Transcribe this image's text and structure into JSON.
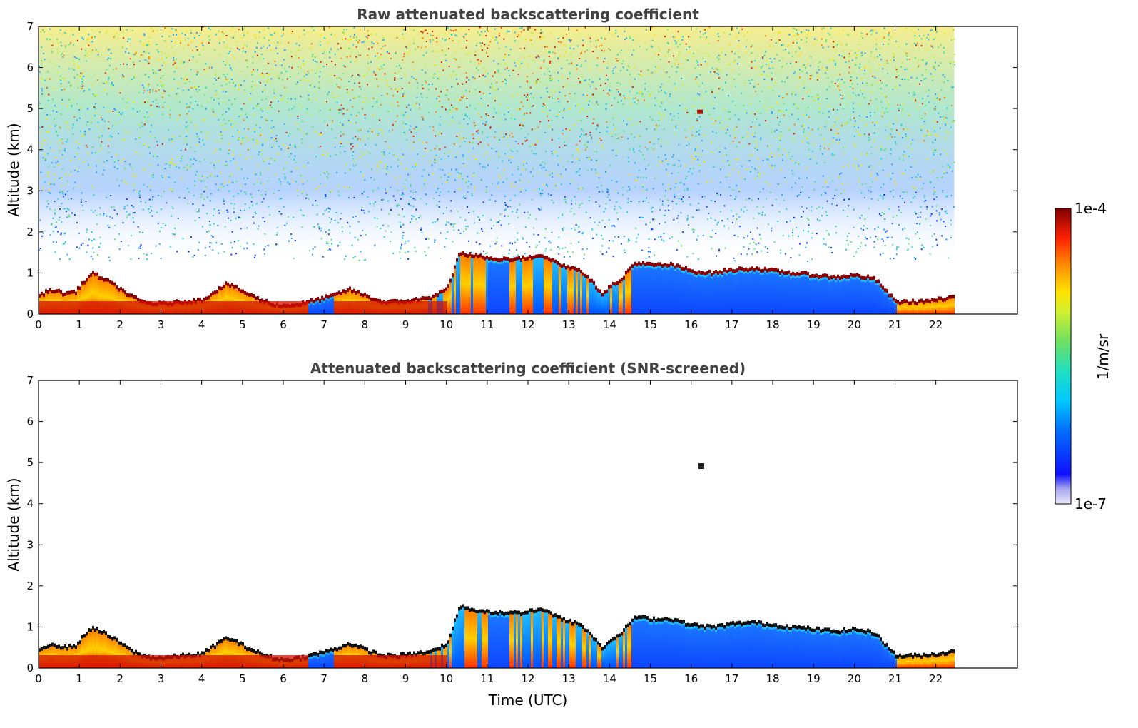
{
  "chart_data": [
    {
      "type": "heatmap",
      "title": "Raw attenuated backscattering coefficient",
      "xlabel": "",
      "ylabel": "Altitude (km)",
      "xlim": [
        0,
        24
      ],
      "ylim": [
        0,
        7
      ],
      "x_ticks": [
        "0",
        "1",
        "2",
        "3",
        "4",
        "5",
        "6",
        "7",
        "8",
        "9",
        "10",
        "11",
        "12",
        "13",
        "14",
        "15",
        "16",
        "17",
        "18",
        "19",
        "20",
        "21",
        "22"
      ],
      "y_ticks": [
        "0",
        "1",
        "2",
        "3",
        "4",
        "5",
        "6",
        "7"
      ],
      "data_end_hour": 22.45,
      "colorscale": "jet (log)",
      "grid": false
    },
    {
      "type": "heatmap",
      "title": "Attenuated backscattering coefficient (SNR-screened)",
      "xlabel": "Time (UTC)",
      "ylabel": "Altitude (km)",
      "xlim": [
        0,
        24
      ],
      "ylim": [
        0,
        7
      ],
      "x_ticks": [
        "0",
        "1",
        "2",
        "3",
        "4",
        "5",
        "6",
        "7",
        "8",
        "9",
        "10",
        "11",
        "12",
        "13",
        "14",
        "15",
        "16",
        "17",
        "18",
        "19",
        "20",
        "21",
        "22"
      ],
      "y_ticks": [
        "0",
        "1",
        "2",
        "3",
        "4",
        "5",
        "6",
        "7"
      ],
      "data_end_hour": 22.45,
      "colorscale": "jet (log)",
      "grid": false
    }
  ],
  "colorbar": {
    "max_label": "1e-4",
    "min_label": "1e-7",
    "unit_label": "1/m/sr",
    "scale": "log"
  },
  "boundary_layer_top_km": [
    [
      0,
      0.45
    ],
    [
      0.3,
      0.6
    ],
    [
      0.6,
      0.5
    ],
    [
      0.9,
      0.55
    ],
    [
      1.1,
      0.8
    ],
    [
      1.3,
      1.0
    ],
    [
      1.6,
      0.85
    ],
    [
      2.0,
      0.6
    ],
    [
      2.3,
      0.4
    ],
    [
      2.6,
      0.28
    ],
    [
      3.0,
      0.25
    ],
    [
      3.5,
      0.3
    ],
    [
      4.0,
      0.35
    ],
    [
      4.3,
      0.55
    ],
    [
      4.6,
      0.75
    ],
    [
      5.0,
      0.55
    ],
    [
      5.3,
      0.4
    ],
    [
      5.7,
      0.25
    ],
    [
      6.0,
      0.2
    ],
    [
      6.4,
      0.25
    ],
    [
      6.8,
      0.35
    ],
    [
      7.2,
      0.45
    ],
    [
      7.6,
      0.6
    ],
    [
      8.0,
      0.45
    ],
    [
      8.4,
      0.3
    ],
    [
      8.8,
      0.3
    ],
    [
      9.2,
      0.35
    ],
    [
      9.6,
      0.4
    ],
    [
      10.0,
      0.6
    ],
    [
      10.3,
      1.5
    ],
    [
      10.8,
      1.4
    ],
    [
      11.3,
      1.35
    ],
    [
      11.8,
      1.35
    ],
    [
      12.3,
      1.45
    ],
    [
      12.8,
      1.2
    ],
    [
      13.3,
      1.05
    ],
    [
      13.8,
      0.5
    ],
    [
      14.3,
      0.9
    ],
    [
      14.6,
      1.25
    ],
    [
      15.0,
      1.2
    ],
    [
      15.5,
      1.2
    ],
    [
      16.0,
      1.05
    ],
    [
      16.5,
      1.0
    ],
    [
      17.0,
      1.08
    ],
    [
      17.5,
      1.12
    ],
    [
      18.0,
      1.05
    ],
    [
      18.5,
      1.0
    ],
    [
      19.0,
      0.95
    ],
    [
      19.5,
      0.9
    ],
    [
      20.0,
      0.95
    ],
    [
      20.5,
      0.85
    ],
    [
      21.0,
      0.3
    ],
    [
      21.5,
      0.3
    ],
    [
      22.0,
      0.35
    ],
    [
      22.45,
      0.4
    ]
  ],
  "colors": {
    "deep_red": "#8b0000",
    "red": "#e3170d",
    "orange": "#ff8c00",
    "yellow": "#f2e600",
    "green": "#7fd64a",
    "cyan": "#2fd9e6",
    "blue": "#1e5fff",
    "dark_blue": "#0010d6",
    "pale": "#c8c8f0",
    "title": "#444444"
  }
}
